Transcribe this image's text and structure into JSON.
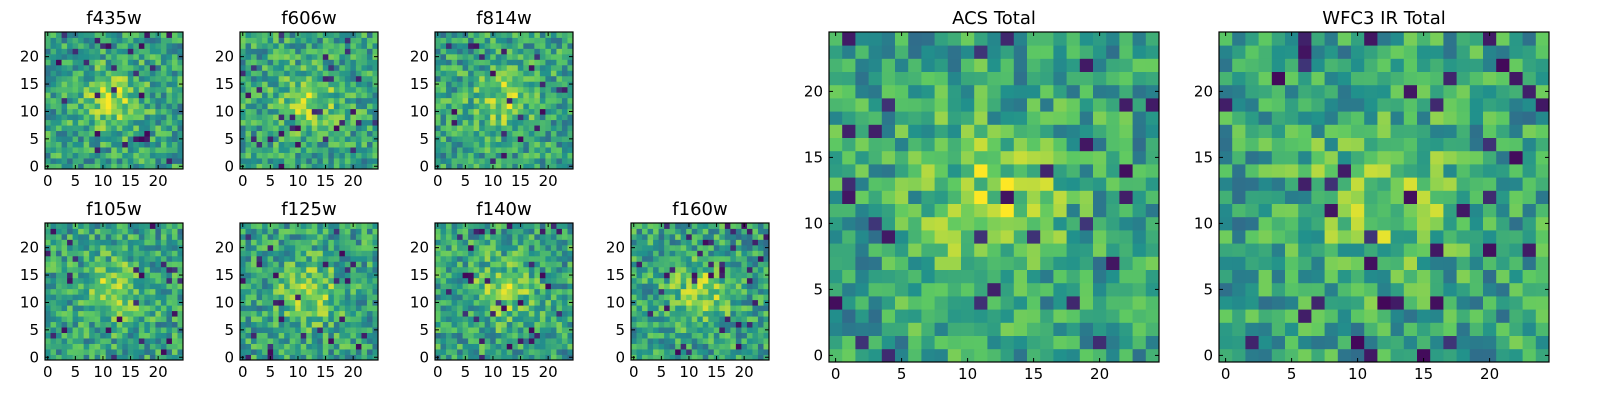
{
  "figure": {
    "colormap": "viridis",
    "colormap_stops": [
      "#440154",
      "#3b528b",
      "#21918c",
      "#5ec962",
      "#fde725"
    ]
  },
  "chart_data": [
    {
      "type": "heatmap",
      "title": "f435w",
      "grid": false,
      "xlim": [
        -0.5,
        24.5
      ],
      "ylim": [
        -0.5,
        24.5
      ],
      "rows": 25,
      "cols": 25,
      "xticks": [
        0,
        5,
        10,
        15,
        20
      ],
      "yticks": [
        0,
        5,
        10,
        15,
        20
      ],
      "values": "noise image: uniform random values with small central bright feature"
    },
    {
      "type": "heatmap",
      "title": "f606w",
      "grid": false,
      "xlim": [
        -0.5,
        24.5
      ],
      "ylim": [
        -0.5,
        24.5
      ],
      "rows": 25,
      "cols": 25,
      "xticks": [
        0,
        5,
        10,
        15,
        20
      ],
      "yticks": [
        0,
        5,
        10,
        15,
        20
      ]
    },
    {
      "type": "heatmap",
      "title": "f814w",
      "grid": false,
      "xlim": [
        -0.5,
        24.5
      ],
      "ylim": [
        -0.5,
        24.5
      ],
      "rows": 25,
      "cols": 25,
      "xticks": [
        0,
        5,
        10,
        15,
        20
      ],
      "yticks": [
        0,
        5,
        10,
        15,
        20
      ]
    },
    {
      "type": "heatmap",
      "title": "f105w",
      "grid": false,
      "xlim": [
        -0.5,
        24.5
      ],
      "ylim": [
        -0.5,
        24.5
      ],
      "rows": 25,
      "cols": 25,
      "xticks": [
        0,
        5,
        10,
        15,
        20
      ],
      "yticks": [
        0,
        5,
        10,
        15,
        20
      ]
    },
    {
      "type": "heatmap",
      "title": "f125w",
      "grid": false,
      "xlim": [
        -0.5,
        24.5
      ],
      "ylim": [
        -0.5,
        24.5
      ],
      "rows": 25,
      "cols": 25,
      "xticks": [
        0,
        5,
        10,
        15,
        20
      ],
      "yticks": [
        0,
        5,
        10,
        15,
        20
      ]
    },
    {
      "type": "heatmap",
      "title": "f140w",
      "grid": false,
      "xlim": [
        -0.5,
        24.5
      ],
      "ylim": [
        -0.5,
        24.5
      ],
      "rows": 25,
      "cols": 25,
      "xticks": [
        0,
        5,
        10,
        15,
        20
      ],
      "yticks": [
        0,
        5,
        10,
        15,
        20
      ]
    },
    {
      "type": "heatmap",
      "title": "f160w",
      "grid": false,
      "xlim": [
        -0.5,
        24.5
      ],
      "ylim": [
        -0.5,
        24.5
      ],
      "rows": 25,
      "cols": 25,
      "xticks": [
        0,
        5,
        10,
        15,
        20
      ],
      "yticks": [
        0,
        5,
        10,
        15,
        20
      ]
    },
    {
      "type": "heatmap",
      "title": "ACS Total",
      "grid": false,
      "xlim": [
        -0.5,
        24.5
      ],
      "ylim": [
        -0.5,
        24.5
      ],
      "rows": 25,
      "cols": 25,
      "xticks": [
        0,
        5,
        10,
        15,
        20
      ],
      "yticks": [
        0,
        5,
        10,
        15,
        20
      ]
    },
    {
      "type": "heatmap",
      "title": "WFC3 IR Total",
      "grid": false,
      "xlim": [
        -0.5,
        24.5
      ],
      "ylim": [
        -0.5,
        24.5
      ],
      "rows": 25,
      "cols": 25,
      "xticks": [
        0,
        5,
        10,
        15,
        20
      ],
      "yticks": [
        0,
        5,
        10,
        15,
        20
      ]
    }
  ]
}
